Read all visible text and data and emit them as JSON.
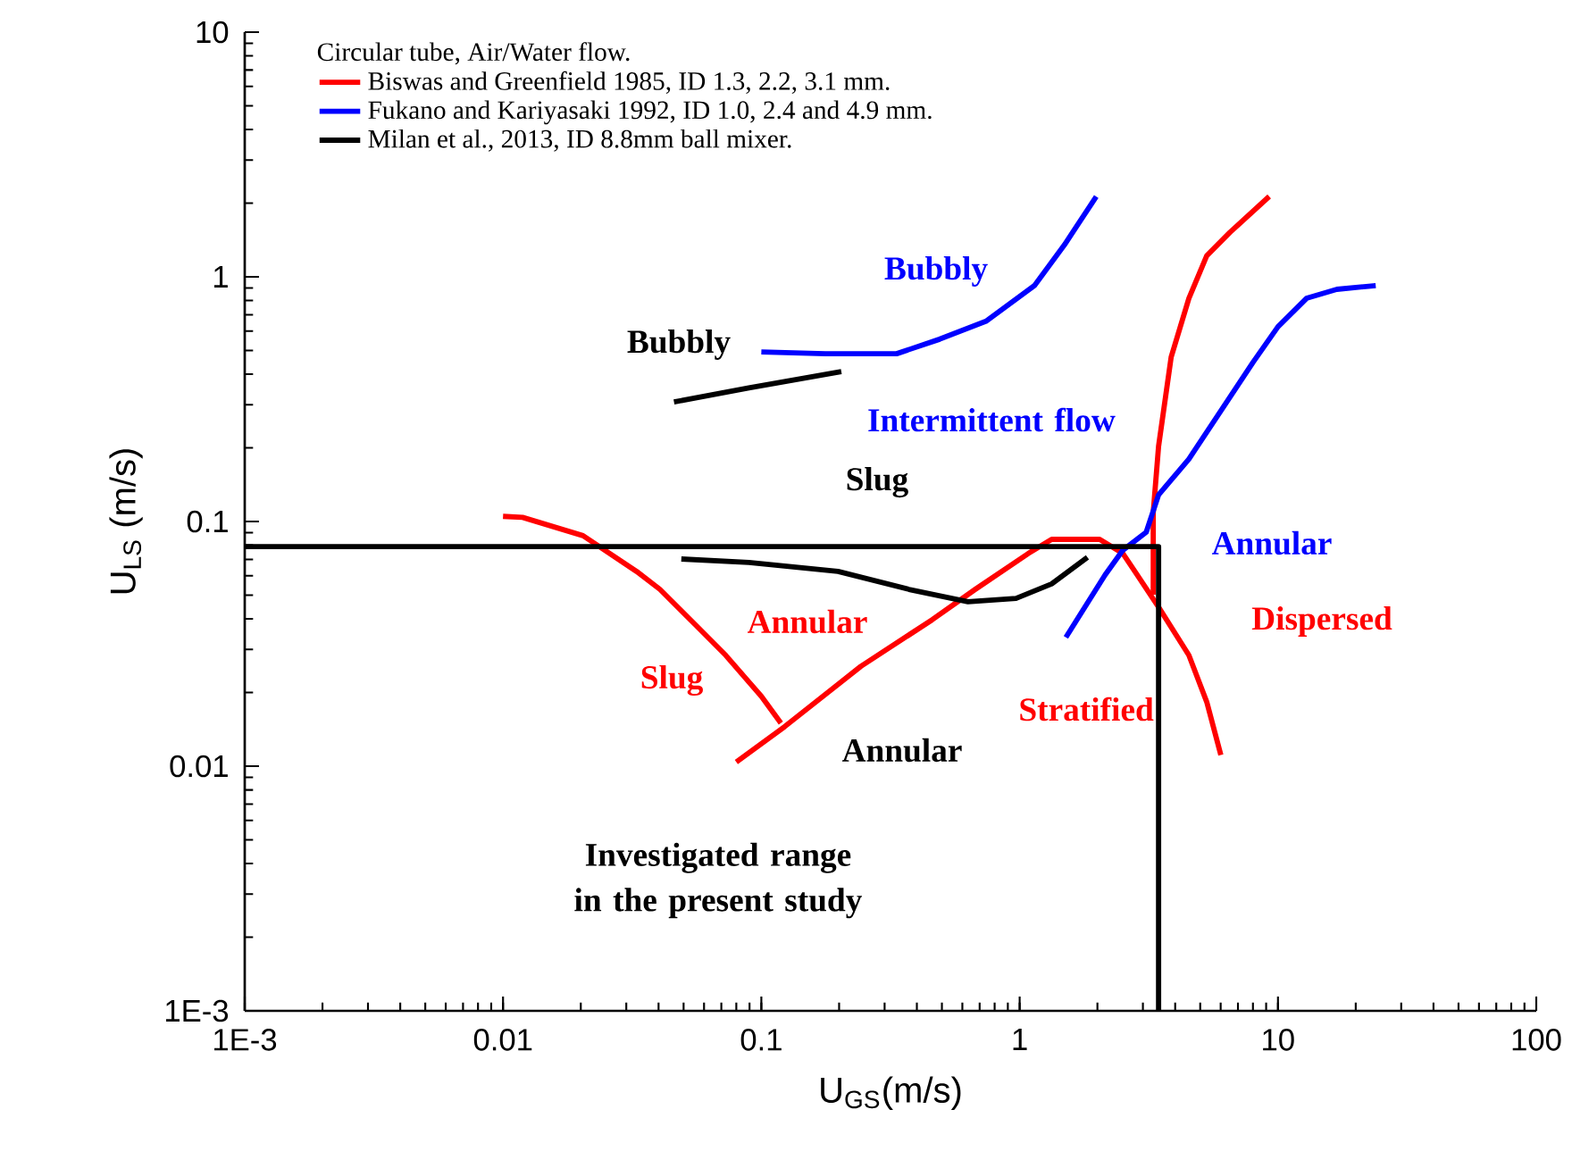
{
  "chart_data": {
    "type": "line",
    "xlabel": "U$_{GS}$(m/s)",
    "ylabel": "U$_{LS}$ (m/s)",
    "legend_title": "Circular tube, Air/Water flow.",
    "log": "xy",
    "marker": "none",
    "line_style": "solid",
    "legend": "top left",
    "xlim": [
      0.001,
      100
    ],
    "ylim": [
      0.001,
      10
    ],
    "xticks": [
      {
        "value": 0.001,
        "label": "1E-3"
      },
      0.01,
      0.1,
      1,
      10,
      100
    ],
    "yticks": [
      {
        "value": 0.001,
        "label": "1E-3"
      },
      0.01,
      0.1,
      1,
      10
    ],
    "series": [
      {
        "name": "Biswas and Greenfield 1985, ID 1.3, 2.2, 3.1 mm.",
        "color": "#ff0000",
        "x": [
          0.01,
          0.0119,
          0.0204,
          0.0329,
          0.0405,
          0.0556,
          0.0728,
          0.1,
          0.119
        ],
        "values": [
          0.105,
          0.104,
          0.0875,
          0.0625,
          0.0528,
          0.0378,
          0.0284,
          0.0193,
          0.015
        ]
      },
      {
        "color": "#ff0000",
        "x": [
          0.08,
          0.123,
          0.243,
          0.459,
          0.673,
          1.08,
          1.33,
          2.04,
          2.51,
          3.45,
          4.52,
          5.3,
          6.01
        ],
        "values": [
          0.0104,
          0.0145,
          0.0256,
          0.0397,
          0.0528,
          0.074,
          0.0845,
          0.0845,
          0.074,
          0.0447,
          0.0284,
          0.0183,
          0.0111
        ]
      },
      {
        "color": "#ff0000",
        "x": [
          3.29,
          3.29,
          3.45,
          3.86,
          4.52,
          5.3,
          6.52,
          9.25
        ],
        "values": [
          0.0502,
          0.109,
          0.203,
          0.47,
          0.817,
          1.22,
          1.52,
          2.13
        ]
      },
      {
        "name": "Fukano and Kariyasaki 1992, ID 1.0, 2.4 and 4.9 mm.",
        "color": "#0000ff",
        "x": [
          0.1,
          0.177,
          0.334,
          0.49,
          0.74,
          1.14,
          1.49,
          1.98
        ],
        "values": [
          0.493,
          0.485,
          0.485,
          0.556,
          0.658,
          0.92,
          1.35,
          2.13
        ]
      },
      {
        "color": "#0000ff",
        "x": [
          1.51,
          2.14,
          2.51,
          3.09,
          3.45,
          4.52,
          5.83,
          8.0,
          10.0,
          12.9,
          16.9,
          23.9
        ],
        "values": [
          0.0336,
          0.0604,
          0.0764,
          0.0904,
          0.1285,
          0.18,
          0.27,
          0.447,
          0.625,
          0.817,
          0.889,
          0.921
        ]
      },
      {
        "name": "Milan et al., 2013, ID 8.8mm ball mixer.",
        "color": "#000000",
        "x": [
          0.0459,
          0.0895,
          0.204
        ],
        "values": [
          0.308,
          0.352,
          0.41
        ]
      },
      {
        "color": "#000000",
        "x": [
          0.049,
          0.0895,
          0.198,
          0.373,
          0.631,
          0.968,
          1.33,
          1.83
        ],
        "values": [
          0.0703,
          0.068,
          0.0625,
          0.0528,
          0.047,
          0.0485,
          0.0556,
          0.0714
        ]
      },
      {
        "color": "#000000",
        "x": [
          0.001,
          3.45,
          3.45
        ],
        "values": [
          0.079,
          0.079,
          0.001
        ]
      }
    ],
    "annotations": [
      "Bubbly",
      "Bubbly",
      "Intermittent flow",
      "Slug",
      "Annular",
      "Annular",
      "Dispersed",
      "Slug",
      "Stratified",
      "Annular",
      "Investigated range in the present study"
    ]
  }
}
